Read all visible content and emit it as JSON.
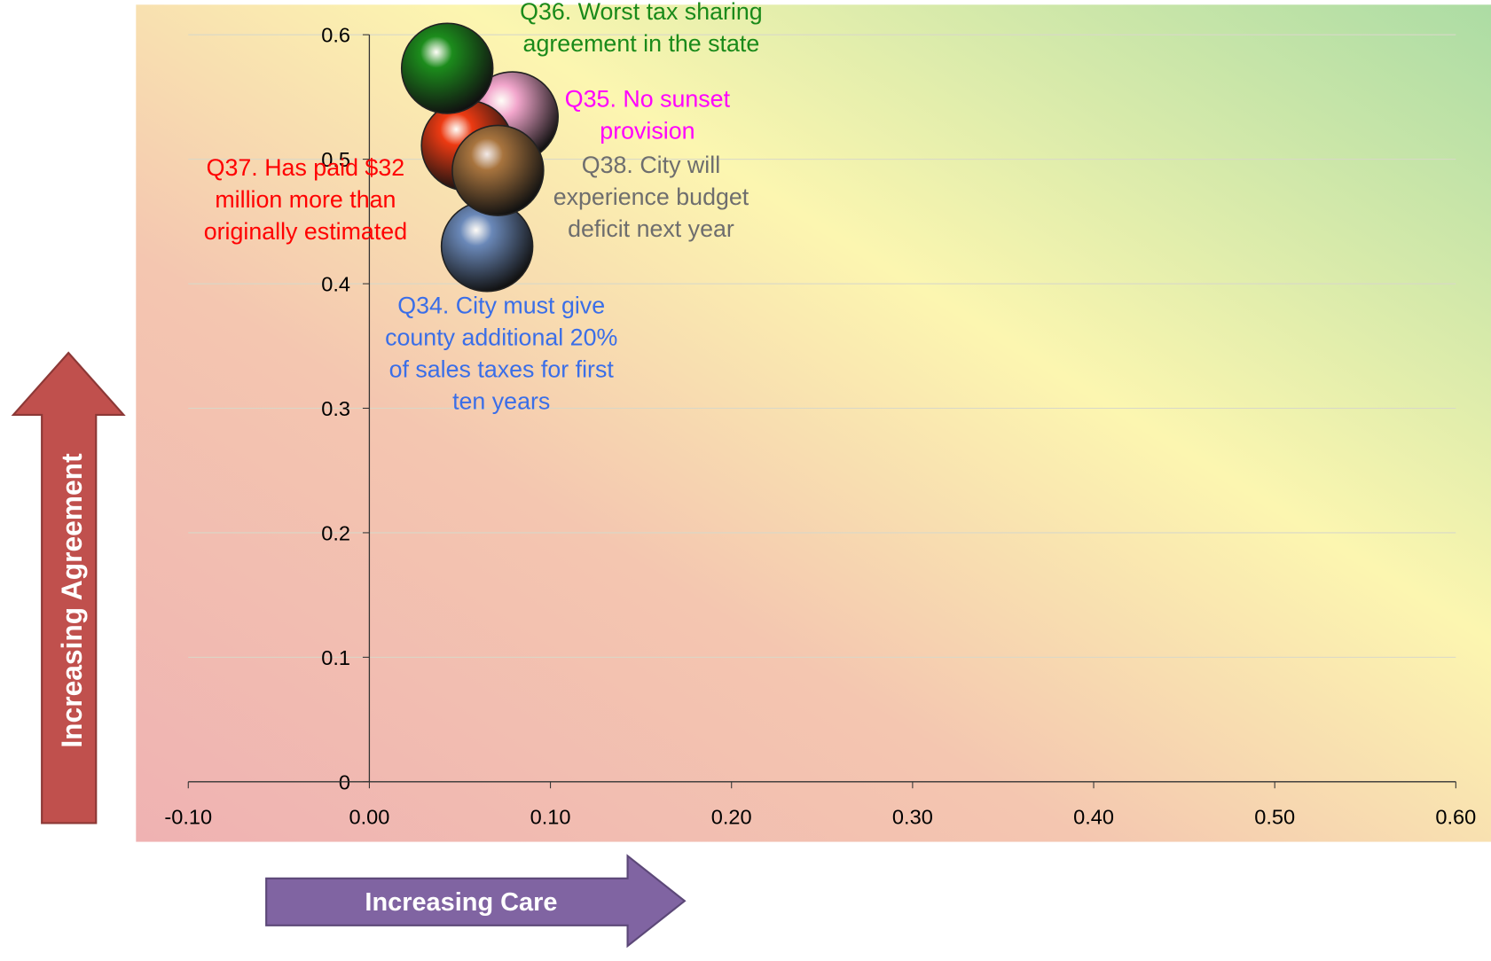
{
  "chart_data": {
    "type": "scatter",
    "x_label": "Increasing Care",
    "y_label": "Increasing Agreement",
    "xlim": [
      -0.1,
      0.6
    ],
    "xticks": [
      {
        "value": -0.1,
        "label": "-0.10"
      },
      {
        "value": 0,
        "label": "0.00"
      },
      {
        "value": 0.1,
        "label": "0.10"
      },
      {
        "value": 0.2,
        "label": "0.20"
      },
      {
        "value": 0.3,
        "label": "0.30"
      },
      {
        "value": 0.4,
        "label": "0.40"
      },
      {
        "value": 0.5,
        "label": "0.50"
      },
      {
        "value": 0.6,
        "label": "0.60"
      }
    ],
    "ylim": [
      0,
      0.6
    ],
    "yticks": [
      0,
      0.1,
      0.2,
      0.3,
      0.4,
      0.5,
      0.6
    ],
    "grid": true,
    "series": [
      {
        "name": "Q34. City must give county additional 20% of sales taxes for first ten years",
        "color": "#6a88b8",
        "label_color": "#3a6ee8",
        "x": [
          0.065
        ],
        "values": [
          0.43
        ]
      },
      {
        "name": "Q35. No sunset provision",
        "color": "#f2a6cc",
        "label_color": "#ff00ff",
        "x": [
          0.079
        ],
        "values": [
          0.534
        ]
      },
      {
        "name": "Q37. Has paid $32 million more than originally estimated",
        "color": "#ec3a12",
        "label_color": "#ff0000",
        "x": [
          0.054
        ],
        "values": [
          0.511
        ]
      },
      {
        "name": "Q38. City will experience budget deficit next year",
        "color": "#a8743e",
        "label_color": "#6e6e6e",
        "x": [
          0.071
        ],
        "values": [
          0.491
        ]
      },
      {
        "name": "Q36. Worst tax sharing agreement in the state",
        "color": "#1c8c1c",
        "label_color": "#1a8a1a",
        "x": [
          0.043
        ],
        "values": [
          0.573
        ]
      }
    ]
  }
}
